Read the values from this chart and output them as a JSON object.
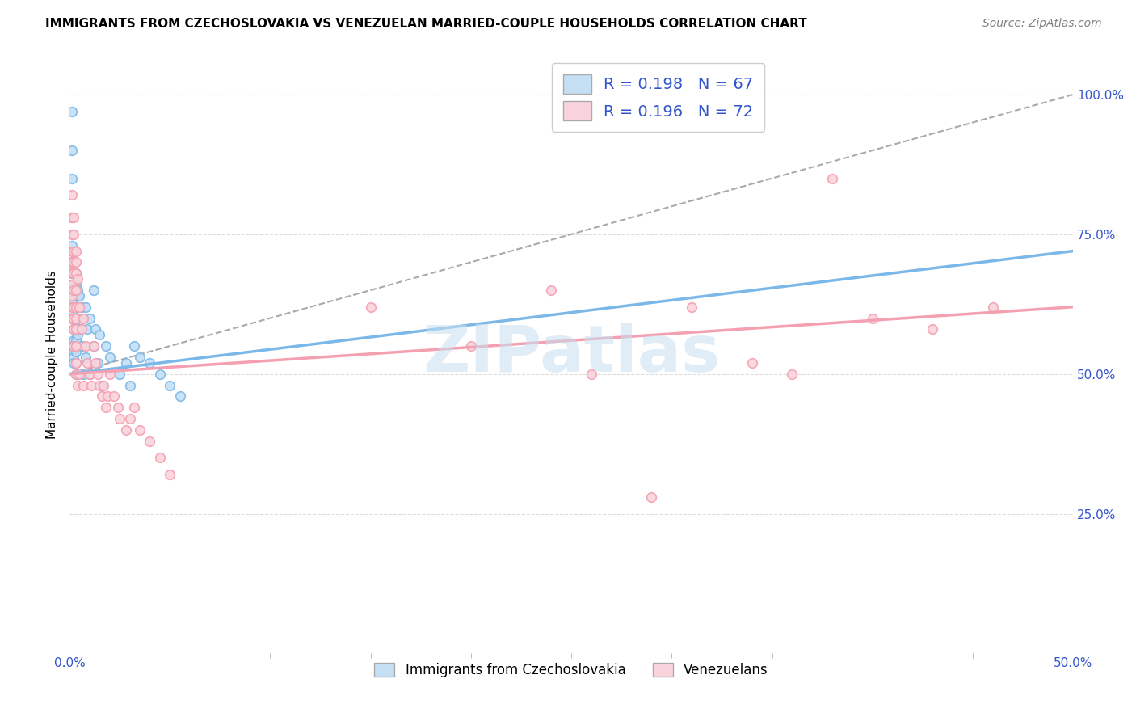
{
  "title": "IMMIGRANTS FROM CZECHOSLOVAKIA VS VENEZUELAN MARRIED-COUPLE HOUSEHOLDS CORRELATION CHART",
  "source": "Source: ZipAtlas.com",
  "ylabel": "Married-couple Households",
  "right_yticks": [
    "100.0%",
    "75.0%",
    "50.0%",
    "25.0%"
  ],
  "right_ytick_vals": [
    1.0,
    0.75,
    0.5,
    0.25
  ],
  "watermark": "ZIPatlas",
  "legend_label1": "R = 0.198   N = 67",
  "legend_label2": "R = 0.196   N = 72",
  "legend_bottom1": "Immigrants from Czechoslovakia",
  "legend_bottom2": "Venezuelans",
  "color_blue": "#7bb8e8",
  "color_pink": "#f4a0b0",
  "color_blue_light": "#c5dff5",
  "color_pink_light": "#fad4dc",
  "xlim": [
    0.0,
    0.5
  ],
  "ylim": [
    0.0,
    1.07
  ],
  "blue_scatter_x": [
    0.001,
    0.001,
    0.001,
    0.001,
    0.001,
    0.001,
    0.001,
    0.001,
    0.001,
    0.001,
    0.001,
    0.001,
    0.001,
    0.002,
    0.002,
    0.002,
    0.002,
    0.002,
    0.002,
    0.002,
    0.002,
    0.002,
    0.002,
    0.002,
    0.002,
    0.003,
    0.003,
    0.003,
    0.003,
    0.003,
    0.003,
    0.003,
    0.003,
    0.003,
    0.003,
    0.004,
    0.004,
    0.004,
    0.004,
    0.005,
    0.005,
    0.006,
    0.006,
    0.007,
    0.007,
    0.008,
    0.008,
    0.009,
    0.01,
    0.01,
    0.012,
    0.012,
    0.013,
    0.014,
    0.015,
    0.016,
    0.018,
    0.02,
    0.025,
    0.028,
    0.03,
    0.032,
    0.035,
    0.04,
    0.045,
    0.05,
    0.055
  ],
  "blue_scatter_y": [
    0.97,
    0.9,
    0.85,
    0.78,
    0.73,
    0.7,
    0.68,
    0.66,
    0.64,
    0.63,
    0.62,
    0.61,
    0.6,
    0.72,
    0.68,
    0.66,
    0.64,
    0.62,
    0.6,
    0.58,
    0.56,
    0.55,
    0.54,
    0.53,
    0.52,
    0.68,
    0.66,
    0.64,
    0.62,
    0.6,
    0.58,
    0.56,
    0.54,
    0.52,
    0.5,
    0.65,
    0.62,
    0.6,
    0.57,
    0.64,
    0.58,
    0.62,
    0.55,
    0.6,
    0.5,
    0.62,
    0.53,
    0.58,
    0.6,
    0.5,
    0.65,
    0.55,
    0.58,
    0.52,
    0.57,
    0.48,
    0.55,
    0.53,
    0.5,
    0.52,
    0.48,
    0.55,
    0.53,
    0.52,
    0.5,
    0.48,
    0.46
  ],
  "pink_scatter_x": [
    0.001,
    0.001,
    0.001,
    0.001,
    0.001,
    0.001,
    0.001,
    0.001,
    0.001,
    0.001,
    0.002,
    0.002,
    0.002,
    0.002,
    0.002,
    0.002,
    0.002,
    0.002,
    0.002,
    0.002,
    0.003,
    0.003,
    0.003,
    0.003,
    0.003,
    0.003,
    0.003,
    0.003,
    0.003,
    0.003,
    0.004,
    0.004,
    0.005,
    0.005,
    0.006,
    0.007,
    0.007,
    0.008,
    0.009,
    0.01,
    0.011,
    0.012,
    0.013,
    0.014,
    0.015,
    0.016,
    0.017,
    0.018,
    0.019,
    0.02,
    0.022,
    0.024,
    0.025,
    0.028,
    0.03,
    0.032,
    0.035,
    0.04,
    0.045,
    0.05,
    0.15,
    0.2,
    0.24,
    0.26,
    0.29,
    0.31,
    0.34,
    0.36,
    0.38,
    0.4,
    0.43,
    0.46
  ],
  "pink_scatter_y": [
    0.82,
    0.78,
    0.75,
    0.72,
    0.7,
    0.68,
    0.66,
    0.64,
    0.62,
    0.6,
    0.78,
    0.75,
    0.72,
    0.7,
    0.68,
    0.65,
    0.62,
    0.6,
    0.58,
    0.55,
    0.72,
    0.7,
    0.68,
    0.65,
    0.62,
    0.6,
    0.58,
    0.55,
    0.52,
    0.5,
    0.67,
    0.48,
    0.62,
    0.5,
    0.58,
    0.6,
    0.48,
    0.55,
    0.52,
    0.5,
    0.48,
    0.55,
    0.52,
    0.5,
    0.48,
    0.46,
    0.48,
    0.44,
    0.46,
    0.5,
    0.46,
    0.44,
    0.42,
    0.4,
    0.42,
    0.44,
    0.4,
    0.38,
    0.35,
    0.32,
    0.62,
    0.55,
    0.65,
    0.5,
    0.28,
    0.62,
    0.52,
    0.5,
    0.85,
    0.6,
    0.58,
    0.62
  ],
  "blue_line_x": [
    0.0,
    0.5
  ],
  "blue_line_y": [
    0.5,
    0.72
  ],
  "pink_line_x": [
    0.0,
    0.5
  ],
  "pink_line_y": [
    0.5,
    0.62
  ],
  "dashed_line_x": [
    0.0,
    0.5
  ],
  "dashed_line_y": [
    0.5,
    1.0
  ],
  "grid_color": "#dddddd",
  "legend_text_color": "#3355cc",
  "tick_color": "#3355cc",
  "title_fontsize": 11,
  "source_fontsize": 10,
  "axis_label_fontsize": 11,
  "tick_fontsize": 11
}
